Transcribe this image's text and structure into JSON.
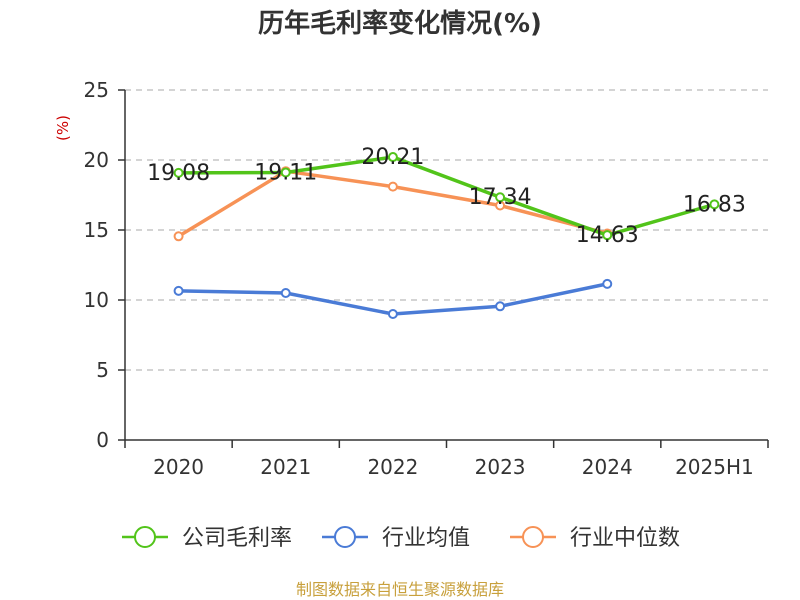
{
  "chart_data": {
    "type": "line",
    "title": "历年毛利率变化情况(%)",
    "ylabel": "(%)",
    "categories": [
      "2020",
      "2021",
      "2022",
      "2023",
      "2024",
      "2025H1"
    ],
    "ylim": [
      0,
      25
    ],
    "yticks": [
      0,
      5,
      10,
      15,
      20,
      25
    ],
    "grid": "horizontal-dashed",
    "legend_position": "bottom",
    "series": [
      {
        "name": "公司毛利率",
        "color": "#52c41a",
        "values": [
          19.08,
          19.11,
          20.21,
          17.34,
          14.63,
          16.83
        ],
        "labels": [
          "19.08",
          "19.11",
          "20.21",
          "17.34",
          "14.63",
          "16.83"
        ]
      },
      {
        "name": "行业均值",
        "color": "#4a7bd6",
        "values": [
          10.65,
          10.5,
          9.0,
          9.55,
          11.15,
          null
        ]
      },
      {
        "name": "行业中位数",
        "color": "#f79256",
        "values": [
          14.55,
          19.2,
          18.1,
          16.75,
          14.75,
          null
        ]
      }
    ]
  },
  "source": "制图数据来自恒生聚源数据库"
}
